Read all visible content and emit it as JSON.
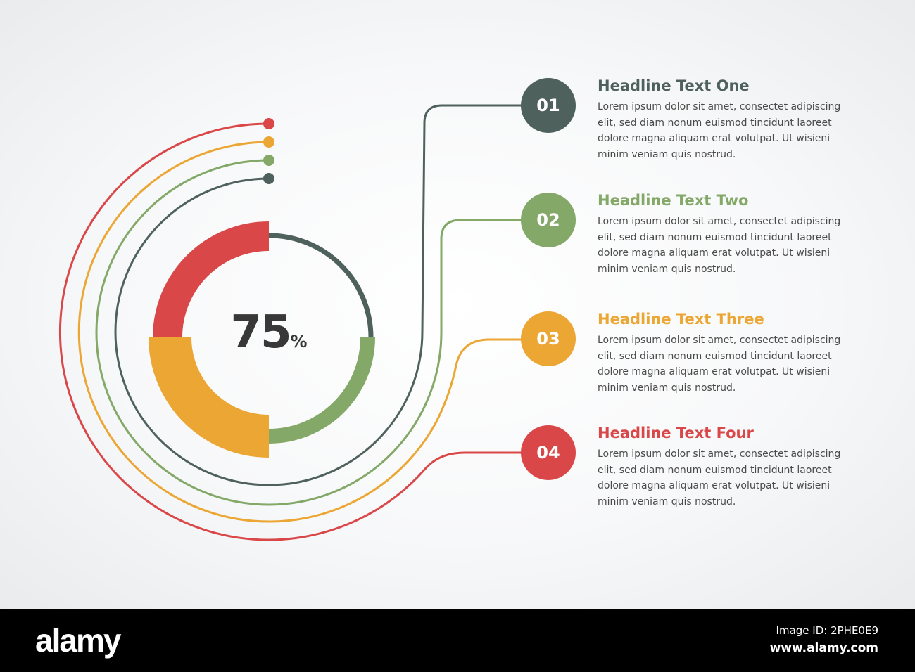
{
  "colors": {
    "gray": "#4f615c",
    "green": "#83a867",
    "orange": "#eca634",
    "red": "#da4749",
    "text": "#383838"
  },
  "center": {
    "value": "75",
    "unit": "%"
  },
  "items": [
    {
      "number": "01",
      "title": "Headline Text One",
      "color": "#4f615c",
      "body": "Lorem ipsum dolor sit amet, consectet adipiscing elit, sed diam nonum euismod tincidunt laoreet dolore magna aliquam erat volutpat. Ut wisieni minim veniam quis nostrud."
    },
    {
      "number": "02",
      "title": "Headline Text Two",
      "color": "#83a867",
      "body": "Lorem ipsum dolor sit amet, consectet adipiscing elit, sed diam nonum euismod tincidunt laoreet dolore magna aliquam erat volutpat. Ut wisieni minim veniam quis nostrud."
    },
    {
      "number": "03",
      "title": "Headline Text Three",
      "color": "#eca634",
      "body": "Lorem ipsum dolor sit amet, consectet adipiscing elit, sed diam nonum euismod tincidunt laoreet dolore magna aliquam erat volutpat. Ut wisieni minim veniam quis nostrud."
    },
    {
      "number": "04",
      "title": "Headline Text Four",
      "color": "#da4749",
      "body": "Lorem ipsum dolor sit amet, consectet adipiscing elit, sed diam nonum euismod tincidunt laoreet dolore magna aliquam erat volutpat. Ut wisieni minim veniam quis nostrud."
    }
  ],
  "footer": {
    "logo": "alamy",
    "image_id": "Image ID: 2PHE0E9",
    "url": "www.alamy.com"
  }
}
